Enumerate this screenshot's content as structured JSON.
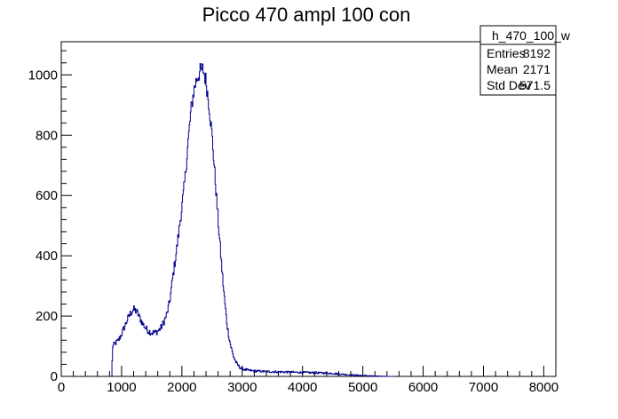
{
  "chart_data": {
    "type": "histogram",
    "title": "Picco 470 ampl 100 con",
    "xlabel": "",
    "ylabel": "",
    "xlim": [
      0,
      8200
    ],
    "ylim": [
      0,
      1110
    ],
    "x_ticks": [
      0,
      1000,
      2000,
      3000,
      4000,
      5000,
      6000,
      7000,
      8000
    ],
    "y_ticks": [
      0,
      200,
      400,
      600,
      800,
      1000
    ],
    "series": [
      {
        "color": "#00008b",
        "bin_width": 10,
        "points": [
          [
            840,
            0
          ],
          [
            850,
            100
          ],
          [
            900,
            110
          ],
          [
            950,
            120
          ],
          [
            1000,
            140
          ],
          [
            1050,
            165
          ],
          [
            1100,
            190
          ],
          [
            1150,
            210
          ],
          [
            1200,
            222
          ],
          [
            1250,
            215
          ],
          [
            1300,
            195
          ],
          [
            1350,
            175
          ],
          [
            1400,
            160
          ],
          [
            1450,
            150
          ],
          [
            1500,
            145
          ],
          [
            1550,
            145
          ],
          [
            1600,
            150
          ],
          [
            1650,
            160
          ],
          [
            1700,
            180
          ],
          [
            1750,
            205
          ],
          [
            1800,
            250
          ],
          [
            1850,
            330
          ],
          [
            1900,
            400
          ],
          [
            1950,
            480
          ],
          [
            2000,
            560
          ],
          [
            2050,
            650
          ],
          [
            2100,
            770
          ],
          [
            2150,
            880
          ],
          [
            2200,
            950
          ],
          [
            2250,
            990
          ],
          [
            2300,
            1010
          ],
          [
            2350,
            1020
          ],
          [
            2400,
            980
          ],
          [
            2450,
            900
          ],
          [
            2500,
            800
          ],
          [
            2550,
            660
          ],
          [
            2600,
            520
          ],
          [
            2650,
            390
          ],
          [
            2700,
            270
          ],
          [
            2750,
            170
          ],
          [
            2800,
            110
          ],
          [
            2850,
            70
          ],
          [
            2900,
            45
          ],
          [
            2950,
            32
          ],
          [
            3000,
            25
          ],
          [
            3100,
            20
          ],
          [
            3200,
            18
          ],
          [
            3400,
            16
          ],
          [
            3600,
            15
          ],
          [
            3800,
            14
          ],
          [
            4000,
            13
          ],
          [
            4200,
            12
          ],
          [
            4400,
            11
          ],
          [
            4500,
            10
          ],
          [
            4600,
            8
          ],
          [
            4800,
            5
          ],
          [
            5000,
            3
          ],
          [
            5200,
            1
          ],
          [
            5400,
            0
          ],
          [
            8000,
            0
          ]
        ]
      }
    ],
    "stats_box": {
      "name": "h_470_100_w",
      "rows": [
        {
          "label": "Entries",
          "value": "8192"
        },
        {
          "label": "Mean",
          "value": "2171"
        },
        {
          "label": "Std Dev",
          "value": "571.5"
        }
      ]
    }
  }
}
